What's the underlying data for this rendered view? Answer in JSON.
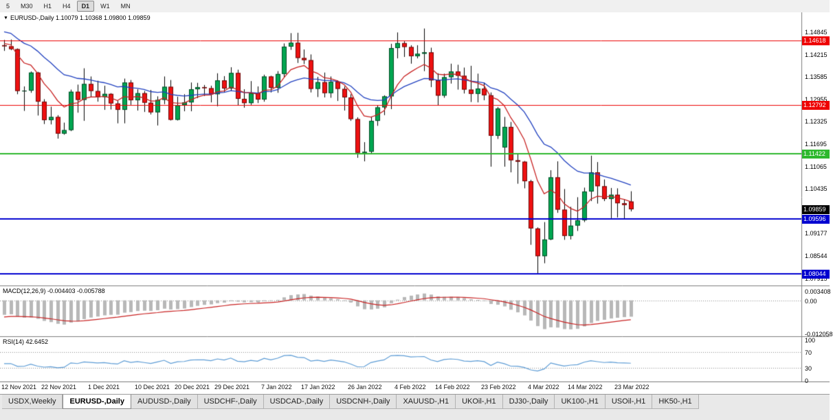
{
  "toolbar": {
    "timeframes": [
      {
        "label": "5",
        "selected": false
      },
      {
        "label": "M30",
        "selected": false
      },
      {
        "label": "H1",
        "selected": false
      },
      {
        "label": "H4",
        "selected": false
      },
      {
        "label": "D1",
        "selected": true
      },
      {
        "label": "W1",
        "selected": false
      },
      {
        "label": "MN",
        "selected": false
      }
    ]
  },
  "chart": {
    "title": "EURUSD-,Daily 1.10079 1.10368 1.09800 1.09859",
    "macd_label": "MACD(12,26,9) -0.004403 -0.005788",
    "rsi_label": "RSI(14) 42.6452"
  },
  "date_axis": [
    {
      "label": "12 Nov 2021",
      "i": 0
    },
    {
      "label": "22 Nov 2021",
      "i": 6
    },
    {
      "label": "1 Dec 2021",
      "i": 13
    },
    {
      "label": "10 Dec 2021",
      "i": 20
    },
    {
      "label": "20 Dec 2021",
      "i": 26
    },
    {
      "label": "29 Dec 2021",
      "i": 32
    },
    {
      "label": "7 Jan 2022",
      "i": 39
    },
    {
      "label": "17 Jan 2022",
      "i": 45
    },
    {
      "label": "26 Jan 2022",
      "i": 52
    },
    {
      "label": "4 Feb 2022",
      "i": 59
    },
    {
      "label": "14 Feb 2022",
      "i": 65
    },
    {
      "label": "23 Feb 2022",
      "i": 72
    },
    {
      "label": "4 Mar 2022",
      "i": 79
    },
    {
      "label": "14 Mar 2022",
      "i": 85
    },
    {
      "label": "23 Mar 2022",
      "i": 92
    }
  ],
  "tabs": [
    {
      "label": "USDX,Weekly",
      "selected": false
    },
    {
      "label": "EURUSD-,Daily",
      "selected": true
    },
    {
      "label": "AUDUSD-,Daily",
      "selected": false
    },
    {
      "label": "USDCHF-,Daily",
      "selected": false
    },
    {
      "label": "USDCAD-,Daily",
      "selected": false
    },
    {
      "label": "USDCNH-,Daily",
      "selected": false
    },
    {
      "label": "XAUUSD-,H1",
      "selected": false
    },
    {
      "label": "UKOil-,H1",
      "selected": false
    },
    {
      "label": "DJ30-,Daily",
      "selected": false
    },
    {
      "label": "UK100-,H1",
      "selected": false
    },
    {
      "label": "USOil-,H1",
      "selected": false
    },
    {
      "label": "HK50-,H1",
      "selected": false
    }
  ],
  "colors": {
    "bull": "#00a651",
    "bear": "#ee1111",
    "wick": "#000000",
    "ma_fast": "#c82020",
    "ma_slow": "#2040c0",
    "macd_hist": "#b8b8b8",
    "macd_signal": "#c82020",
    "rsi_line": "#5b9bd5",
    "level_red": "#ee0000",
    "level_green": "#2db82d",
    "level_blue": "#0000d0",
    "current_price_bg": "#000000"
  },
  "chart_data": {
    "type": "candlestick",
    "symbol": "EURUSD-",
    "timeframe": "Daily",
    "last_candle_ohlc": {
      "open": 1.10079,
      "high": 1.10368,
      "low": 1.098,
      "close": 1.09859
    },
    "current_price": {
      "text": "1.09859",
      "value": 1.09859
    },
    "price_axis_ticks": [
      "1.14845",
      "1.14215",
      "1.13585",
      "1.12955",
      "1.12325",
      "1.11695",
      "1.11065",
      "1.10435",
      "1.09177",
      "1.08544",
      "1.07915"
    ],
    "horizontal_levels": [
      {
        "text": "1.14618",
        "price": 1.14618,
        "color": "#ee0000",
        "width": 1
      },
      {
        "text": "1.12792",
        "price": 1.12792,
        "color": "#ee0000",
        "width": 1
      },
      {
        "text": "1.11422",
        "price": 1.11422,
        "color": "#2db82d",
        "width": 2
      },
      {
        "text": "1.09596",
        "price": 1.09596,
        "color": "#0000d0",
        "width": 2
      },
      {
        "text": "1.08044",
        "price": 1.08044,
        "color": "#0000d0",
        "width": 2
      }
    ],
    "macd": {
      "params": "12,26,9",
      "main": -0.004403,
      "signal": -0.005788,
      "axis_labels": [
        {
          "text": "0.003408",
          "v": 0.003408
        },
        {
          "text": "0.00",
          "v": 0
        },
        {
          "text": "-0.012058",
          "v": -0.012058
        }
      ]
    },
    "rsi": {
      "period": 14,
      "value": 42.6452,
      "axis_labels": [
        {
          "text": "100",
          "v": 100
        },
        {
          "text": "70",
          "v": 70
        },
        {
          "text": "30",
          "v": 30
        },
        {
          "text": "0",
          "v": 0
        }
      ],
      "dotted_levels": [
        70,
        30
      ]
    },
    "candles": [
      [
        "2021-11-12",
        1.1448,
        1.1463,
        1.1432,
        1.1445
      ],
      [
        "2021-11-15",
        1.1445,
        1.1464,
        1.1434,
        1.1437
      ],
      [
        "2021-11-16",
        1.1437,
        1.1439,
        1.131,
        1.1319
      ],
      [
        "2021-11-17",
        1.1319,
        1.1332,
        1.1263,
        1.132
      ],
      [
        "2021-11-18",
        1.132,
        1.1374,
        1.1314,
        1.1371
      ],
      [
        "2021-11-19",
        1.1371,
        1.1373,
        1.125,
        1.1289
      ],
      [
        "2021-11-22",
        1.1289,
        1.1296,
        1.1226,
        1.1237
      ],
      [
        "2021-11-23",
        1.1237,
        1.1275,
        1.1225,
        1.1246
      ],
      [
        "2021-11-24",
        1.1246,
        1.1251,
        1.1185,
        1.1199
      ],
      [
        "2021-11-25",
        1.1199,
        1.123,
        1.1196,
        1.1209
      ],
      [
        "2021-11-26",
        1.1209,
        1.1323,
        1.1206,
        1.1317
      ],
      [
        "2021-11-29",
        1.1317,
        1.1337,
        1.1258,
        1.1294
      ],
      [
        "2021-11-30",
        1.1294,
        1.1383,
        1.1235,
        1.1339
      ],
      [
        "2021-12-01",
        1.1339,
        1.136,
        1.1302,
        1.1319
      ],
      [
        "2021-12-02",
        1.1319,
        1.1348,
        1.1289,
        1.1302
      ],
      [
        "2021-12-03",
        1.1302,
        1.1334,
        1.1266,
        1.1311
      ],
      [
        "2021-12-06",
        1.1311,
        1.1313,
        1.1267,
        1.1284
      ],
      [
        "2021-12-07",
        1.1284,
        1.1291,
        1.1228,
        1.1266
      ],
      [
        "2021-12-08",
        1.1266,
        1.1354,
        1.1228,
        1.1343
      ],
      [
        "2021-12-09",
        1.1343,
        1.135,
        1.128,
        1.1293
      ],
      [
        "2021-12-10",
        1.1293,
        1.1324,
        1.1264,
        1.1313
      ],
      [
        "2021-12-13",
        1.1313,
        1.1319,
        1.126,
        1.1286
      ],
      [
        "2021-12-14",
        1.1286,
        1.1322,
        1.1253,
        1.1259
      ],
      [
        "2021-12-15",
        1.1259,
        1.1304,
        1.1222,
        1.1294
      ],
      [
        "2021-12-16",
        1.1294,
        1.136,
        1.1282,
        1.1331
      ],
      [
        "2021-12-17",
        1.1331,
        1.135,
        1.1236,
        1.1238
      ],
      [
        "2021-12-20",
        1.1238,
        1.1303,
        1.1236,
        1.1279
      ],
      [
        "2021-12-21",
        1.1279,
        1.131,
        1.1262,
        1.1287
      ],
      [
        "2021-12-22",
        1.1287,
        1.1343,
        1.1262,
        1.1324
      ],
      [
        "2021-12-23",
        1.1324,
        1.1342,
        1.1299,
        1.133
      ],
      [
        "2021-12-27",
        1.133,
        1.1336,
        1.1305,
        1.1327
      ],
      [
        "2021-12-28",
        1.1327,
        1.1334,
        1.1287,
        1.131
      ],
      [
        "2021-12-29",
        1.131,
        1.1369,
        1.1276,
        1.1349
      ],
      [
        "2021-12-30",
        1.1349,
        1.1361,
        1.1315,
        1.1326
      ],
      [
        "2021-12-31",
        1.1326,
        1.1386,
        1.132,
        1.137
      ],
      [
        "2022-01-03",
        1.137,
        1.1379,
        1.1278,
        1.1297
      ],
      [
        "2022-01-04",
        1.1297,
        1.1324,
        1.1272,
        1.1285
      ],
      [
        "2022-01-05",
        1.1285,
        1.1347,
        1.128,
        1.1313
      ],
      [
        "2022-01-06",
        1.1313,
        1.1332,
        1.1285,
        1.1295
      ],
      [
        "2022-01-07",
        1.1295,
        1.1365,
        1.1289,
        1.136
      ],
      [
        "2022-01-10",
        1.136,
        1.1362,
        1.1315,
        1.1328
      ],
      [
        "2022-01-11",
        1.1328,
        1.1375,
        1.1314,
        1.1367
      ],
      [
        "2022-01-12",
        1.1367,
        1.1453,
        1.1357,
        1.1444
      ],
      [
        "2022-01-13",
        1.1444,
        1.1482,
        1.1435,
        1.1455
      ],
      [
        "2022-01-14",
        1.1455,
        1.1483,
        1.1398,
        1.1412
      ],
      [
        "2022-01-17",
        1.1412,
        1.1436,
        1.1395,
        1.1406
      ],
      [
        "2022-01-18",
        1.1406,
        1.1422,
        1.1315,
        1.1325
      ],
      [
        "2022-01-19",
        1.1325,
        1.1359,
        1.1302,
        1.1344
      ],
      [
        "2022-01-20",
        1.1344,
        1.1371,
        1.1301,
        1.1313
      ],
      [
        "2022-01-21",
        1.1313,
        1.136,
        1.13,
        1.1345
      ],
      [
        "2022-01-24",
        1.1345,
        1.1349,
        1.1291,
        1.1325
      ],
      [
        "2022-01-25",
        1.1325,
        1.1332,
        1.1264,
        1.1301
      ],
      [
        "2022-01-26",
        1.1301,
        1.131,
        1.1235,
        1.124
      ],
      [
        "2022-01-27",
        1.124,
        1.1245,
        1.1131,
        1.1145
      ],
      [
        "2022-01-28",
        1.1145,
        1.1175,
        1.1121,
        1.1148
      ],
      [
        "2022-01-31",
        1.1148,
        1.1247,
        1.1141,
        1.1235
      ],
      [
        "2022-02-01",
        1.1235,
        1.1279,
        1.1221,
        1.1273
      ],
      [
        "2022-02-02",
        1.1273,
        1.1307,
        1.1251,
        1.1304
      ],
      [
        "2022-02-03",
        1.1304,
        1.1452,
        1.1268,
        1.144
      ],
      [
        "2022-02-04",
        1.144,
        1.1484,
        1.1411,
        1.1454
      ],
      [
        "2022-02-07",
        1.1454,
        1.1459,
        1.1415,
        1.1443
      ],
      [
        "2022-02-08",
        1.1443,
        1.1448,
        1.1396,
        1.1417
      ],
      [
        "2022-02-09",
        1.1417,
        1.1448,
        1.1411,
        1.1424
      ],
      [
        "2022-02-10",
        1.1424,
        1.1495,
        1.1375,
        1.1428
      ],
      [
        "2022-02-11",
        1.1428,
        1.1441,
        1.133,
        1.1349
      ],
      [
        "2022-02-14",
        1.1349,
        1.1369,
        1.1278,
        1.1306
      ],
      [
        "2022-02-15",
        1.1306,
        1.1368,
        1.13,
        1.1358
      ],
      [
        "2022-02-16",
        1.1358,
        1.1396,
        1.134,
        1.1374
      ],
      [
        "2022-02-17",
        1.1374,
        1.1393,
        1.1323,
        1.1362
      ],
      [
        "2022-02-18",
        1.1362,
        1.1385,
        1.1312,
        1.1323
      ],
      [
        "2022-02-21",
        1.1323,
        1.139,
        1.1288,
        1.1311
      ],
      [
        "2022-02-22",
        1.1311,
        1.1368,
        1.1287,
        1.1326
      ],
      [
        "2022-02-23",
        1.1326,
        1.1343,
        1.1293,
        1.1307
      ],
      [
        "2022-02-24",
        1.1307,
        1.1315,
        1.1106,
        1.1193
      ],
      [
        "2022-02-25",
        1.1193,
        1.1274,
        1.1184,
        1.127
      ],
      [
        "2022-02-28",
        1.116,
        1.1246,
        1.1106,
        1.1218
      ],
      [
        "2022-03-01",
        1.1218,
        1.1232,
        1.109,
        1.1124
      ],
      [
        "2022-03-02",
        1.1124,
        1.1143,
        1.1058,
        1.112
      ],
      [
        "2022-03-03",
        1.112,
        1.1122,
        1.1045,
        1.1065
      ],
      [
        "2022-03-04",
        1.1065,
        1.1069,
        1.0886,
        1.0932
      ],
      [
        "2022-03-07",
        1.0932,
        1.0935,
        1.0806,
        1.0854
      ],
      [
        "2022-03-08",
        1.0854,
        1.095,
        1.0834,
        1.0901
      ],
      [
        "2022-03-09",
        1.0901,
        1.1096,
        1.0899,
        1.1076
      ],
      [
        "2022-03-10",
        1.1076,
        1.1121,
        1.0976,
        1.0985
      ],
      [
        "2022-03-11",
        1.0985,
        1.1043,
        1.09,
        1.0911
      ],
      [
        "2022-03-14",
        1.0911,
        1.0993,
        1.0901,
        1.094
      ],
      [
        "2022-03-15",
        1.094,
        1.102,
        1.0925,
        1.0955
      ],
      [
        "2022-03-16",
        1.0955,
        1.1047,
        1.095,
        1.1036
      ],
      [
        "2022-03-17",
        1.1036,
        1.1137,
        1.1009,
        1.109
      ],
      [
        "2022-03-18",
        1.109,
        1.1119,
        1.1002,
        1.1051
      ],
      [
        "2022-03-21",
        1.1051,
        1.107,
        1.1009,
        1.1015
      ],
      [
        "2022-03-22",
        1.1015,
        1.1046,
        1.0961,
        1.1027
      ],
      [
        "2022-03-23",
        1.1027,
        1.1045,
        1.0963,
        1.1003
      ],
      [
        "2022-03-24",
        1.1003,
        1.1014,
        1.096,
        1.0998
      ],
      [
        "2022-03-25",
        1.10079,
        1.10368,
        1.098,
        1.09859
      ]
    ]
  }
}
